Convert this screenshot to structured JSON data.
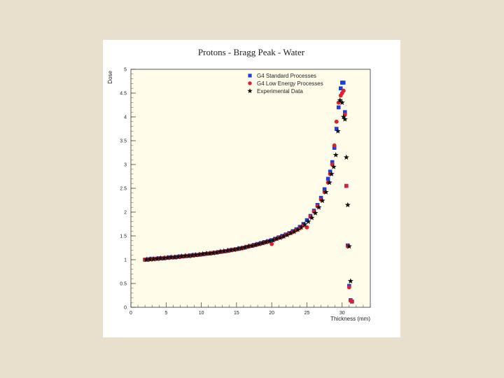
{
  "colors": {
    "slide_background": "#e8e0cc",
    "plot_background": "#fffde9",
    "standard": "#1f3fd6",
    "low_energy": "#e0202a",
    "experimental": "#111111"
  },
  "chart_data": {
    "type": "scatter",
    "title": "Protons - Bragg Peak - Water",
    "xlabel": "Thickness (mm)",
    "ylabel": "Dose",
    "xlim": [
      0,
      34
    ],
    "ylim": [
      0,
      5
    ],
    "x_ticks": [
      "0",
      "5",
      "10",
      "15",
      "20",
      "25",
      "30"
    ],
    "y_ticks": [
      "0",
      "0.5",
      "1",
      "1.5",
      "2",
      "2.5",
      "3",
      "3.5",
      "4",
      "4.5",
      "5"
    ],
    "grid": false,
    "legend_position": "top-right",
    "series": [
      {
        "name": "G4 Standard Processes",
        "marker": "square",
        "x": [
          2,
          2.5,
          3,
          3.5,
          4,
          4.5,
          5,
          5.5,
          6,
          6.5,
          7,
          7.5,
          8,
          8.5,
          9,
          9.5,
          10,
          10.5,
          11,
          11.5,
          12,
          12.5,
          13,
          13.5,
          14,
          14.5,
          15,
          15.5,
          16,
          16.5,
          17,
          17.5,
          18,
          18.5,
          19,
          19.5,
          20,
          20.5,
          21,
          21.5,
          22,
          22.5,
          23,
          23.5,
          24,
          24.5,
          25,
          25.5,
          26,
          26.5,
          27,
          27.5,
          28,
          28.3,
          28.6,
          28.9,
          29.2,
          29.5,
          29.8,
          30.0,
          30.2,
          30.4,
          30.6,
          30.8,
          31.0,
          31.2,
          31.4
        ],
        "y": [
          1.0,
          1.01,
          1.02,
          1.02,
          1.03,
          1.03,
          1.04,
          1.05,
          1.05,
          1.06,
          1.07,
          1.07,
          1.08,
          1.09,
          1.1,
          1.1,
          1.11,
          1.12,
          1.13,
          1.14,
          1.15,
          1.16,
          1.17,
          1.18,
          1.2,
          1.21,
          1.22,
          1.24,
          1.25,
          1.27,
          1.29,
          1.31,
          1.33,
          1.35,
          1.37,
          1.39,
          1.41,
          1.44,
          1.47,
          1.5,
          1.53,
          1.56,
          1.6,
          1.64,
          1.69,
          1.75,
          1.83,
          1.92,
          2.03,
          2.15,
          2.3,
          2.48,
          2.7,
          2.85,
          3.05,
          3.35,
          3.75,
          4.2,
          4.6,
          4.72,
          4.72,
          4.1,
          2.55,
          1.3,
          0.45,
          0.15,
          0.12
        ]
      },
      {
        "name": "G4 Low Energy Processes",
        "marker": "circle",
        "x": [
          2,
          2.5,
          3,
          3.5,
          4,
          4.5,
          5,
          5.5,
          6,
          6.5,
          7,
          7.5,
          8,
          8.5,
          9,
          9.5,
          10,
          10.5,
          11,
          11.5,
          12,
          12.5,
          13,
          13.5,
          14,
          14.5,
          15,
          15.5,
          16,
          16.5,
          17,
          17.5,
          18,
          18.5,
          19,
          19.5,
          20,
          20.5,
          21,
          21.5,
          22,
          22.5,
          23,
          23.5,
          24,
          24.5,
          25,
          25.5,
          26,
          26.5,
          27,
          27.5,
          28,
          28.3,
          28.6,
          28.9,
          29.2,
          29.5,
          29.8,
          30.0,
          30.2,
          30.4,
          30.6,
          30.8,
          31.0,
          31.2,
          31.4
        ],
        "y": [
          1.0,
          1.0,
          1.01,
          1.02,
          1.02,
          1.03,
          1.04,
          1.04,
          1.05,
          1.05,
          1.06,
          1.07,
          1.08,
          1.08,
          1.09,
          1.1,
          1.11,
          1.12,
          1.13,
          1.14,
          1.15,
          1.16,
          1.17,
          1.18,
          1.19,
          1.21,
          1.22,
          1.23,
          1.25,
          1.27,
          1.29,
          1.3,
          1.32,
          1.34,
          1.36,
          1.38,
          1.33,
          1.43,
          1.46,
          1.48,
          1.52,
          1.55,
          1.58,
          1.62,
          1.66,
          1.72,
          1.68,
          1.9,
          2.01,
          2.12,
          2.26,
          2.42,
          2.62,
          2.8,
          3.0,
          3.4,
          3.9,
          4.3,
          4.45,
          4.5,
          4.55,
          4.05,
          2.55,
          1.28,
          0.42,
          0.14,
          0.12
        ]
      },
      {
        "name": "Experimental Data",
        "marker": "star",
        "x": [
          2.2,
          2.7,
          3.2,
          3.7,
          4.2,
          4.7,
          5.2,
          5.7,
          6.2,
          6.7,
          7.2,
          7.7,
          8.2,
          8.7,
          9.2,
          9.7,
          10.2,
          10.7,
          11.2,
          11.7,
          12.2,
          12.7,
          13.2,
          13.7,
          14.2,
          14.7,
          15.2,
          15.7,
          16.2,
          16.7,
          17.2,
          17.7,
          18.2,
          18.7,
          19.2,
          19.7,
          20.2,
          20.7,
          21.2,
          21.7,
          22.2,
          22.7,
          23.2,
          23.7,
          24.2,
          24.7,
          25.2,
          25.7,
          26.2,
          26.7,
          27.2,
          27.7,
          28.2,
          28.5,
          28.8,
          29.1,
          29.4,
          29.7,
          30.0,
          30.2,
          30.4,
          30.6,
          30.8,
          31.0,
          31.2
        ],
        "y": [
          1.0,
          1.01,
          1.01,
          1.02,
          1.03,
          1.03,
          1.04,
          1.05,
          1.05,
          1.06,
          1.07,
          1.08,
          1.08,
          1.09,
          1.1,
          1.11,
          1.12,
          1.13,
          1.13,
          1.14,
          1.15,
          1.17,
          1.18,
          1.19,
          1.2,
          1.21,
          1.23,
          1.24,
          1.26,
          1.28,
          1.29,
          1.31,
          1.33,
          1.35,
          1.37,
          1.39,
          1.41,
          1.44,
          1.46,
          1.49,
          1.52,
          1.56,
          1.59,
          1.63,
          1.68,
          1.74,
          1.8,
          1.88,
          1.98,
          2.1,
          2.24,
          2.42,
          2.62,
          2.8,
          2.95,
          3.2,
          3.7,
          4.35,
          4.3,
          4.0,
          3.95,
          3.15,
          2.15,
          1.28,
          0.55
        ]
      }
    ]
  }
}
